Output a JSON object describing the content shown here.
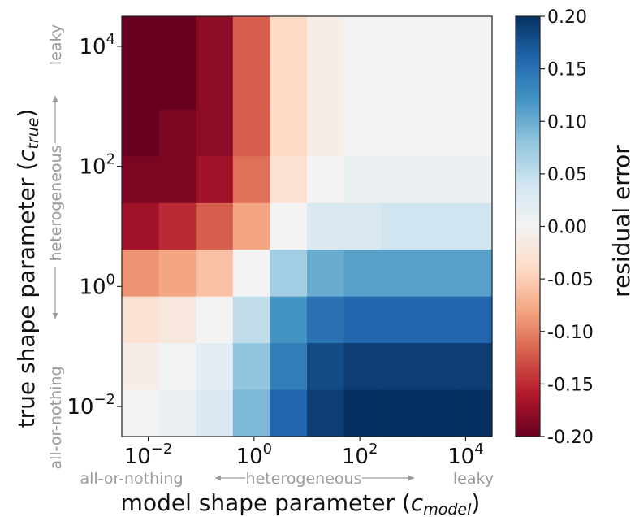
{
  "chart_data": {
    "type": "heatmap",
    "xlabel": "model shape parameter (",
    "xlabel_sub": "model",
    "xlabel_close": ")",
    "xlabel_var": "c",
    "ylabel": "true shape parameter (",
    "ylabel_sub": "true",
    "ylabel_close": ")",
    "ylabel_var": "c",
    "x_scale": "log",
    "y_scale": "log",
    "x_ticks": [
      {
        "value": 0.01,
        "base": "10",
        "exp": "−2"
      },
      {
        "value": 1,
        "base": "10",
        "exp": "0"
      },
      {
        "value": 100,
        "base": "10",
        "exp": "2"
      },
      {
        "value": 10000,
        "base": "10",
        "exp": "4"
      }
    ],
    "y_ticks": [
      {
        "value": 0.01,
        "base": "10",
        "exp": "−2"
      },
      {
        "value": 1,
        "base": "10",
        "exp": "0"
      },
      {
        "value": 100,
        "base": "10",
        "exp": "2"
      },
      {
        "value": 10000,
        "base": "10",
        "exp": "4"
      }
    ],
    "y_rows_top_to_bottom": "highest c_true first",
    "values": [
      [
        -0.2,
        -0.2,
        -0.18,
        -0.12,
        -0.04,
        -0.01,
        0.0,
        0.0,
        0.0,
        0.0
      ],
      [
        -0.2,
        -0.2,
        -0.18,
        -0.12,
        -0.04,
        -0.01,
        0.0,
        0.0,
        0.0,
        0.0
      ],
      [
        -0.2,
        -0.19,
        -0.18,
        -0.12,
        -0.04,
        -0.01,
        0.0,
        0.0,
        0.0,
        0.0
      ],
      [
        -0.19,
        -0.19,
        -0.17,
        -0.11,
        -0.03,
        0.0,
        0.01,
        0.01,
        0.01,
        0.01
      ],
      [
        -0.17,
        -0.15,
        -0.12,
        -0.08,
        0.0,
        0.03,
        0.03,
        0.04,
        0.04,
        0.04
      ],
      [
        -0.09,
        -0.08,
        -0.06,
        0.0,
        0.07,
        0.1,
        0.11,
        0.11,
        0.11,
        0.11
      ],
      [
        -0.03,
        -0.02,
        0.0,
        0.05,
        0.12,
        0.15,
        0.16,
        0.16,
        0.16,
        0.16
      ],
      [
        -0.01,
        0.0,
        0.02,
        0.08,
        0.14,
        0.18,
        0.19,
        0.19,
        0.19,
        0.19
      ],
      [
        0.0,
        0.01,
        0.03,
        0.09,
        0.16,
        0.19,
        0.2,
        0.2,
        0.2,
        0.2
      ]
    ],
    "colorbar": {
      "label": "residual error",
      "min": -0.2,
      "max": 0.2,
      "ticks": [
        "0.20",
        "0.15",
        "0.10",
        "0.05",
        "0.00",
        "-0.05",
        "-0.10",
        "-0.15",
        "-0.20"
      ],
      "colormap": "RdBu"
    },
    "x_annotations": {
      "left": "all-or-nothing",
      "middle": "heterogeneous",
      "right": "leaky"
    },
    "y_annotations": {
      "bottom": "all-or-nothing",
      "middle": "heterogeneous",
      "top": "leaky"
    }
  }
}
